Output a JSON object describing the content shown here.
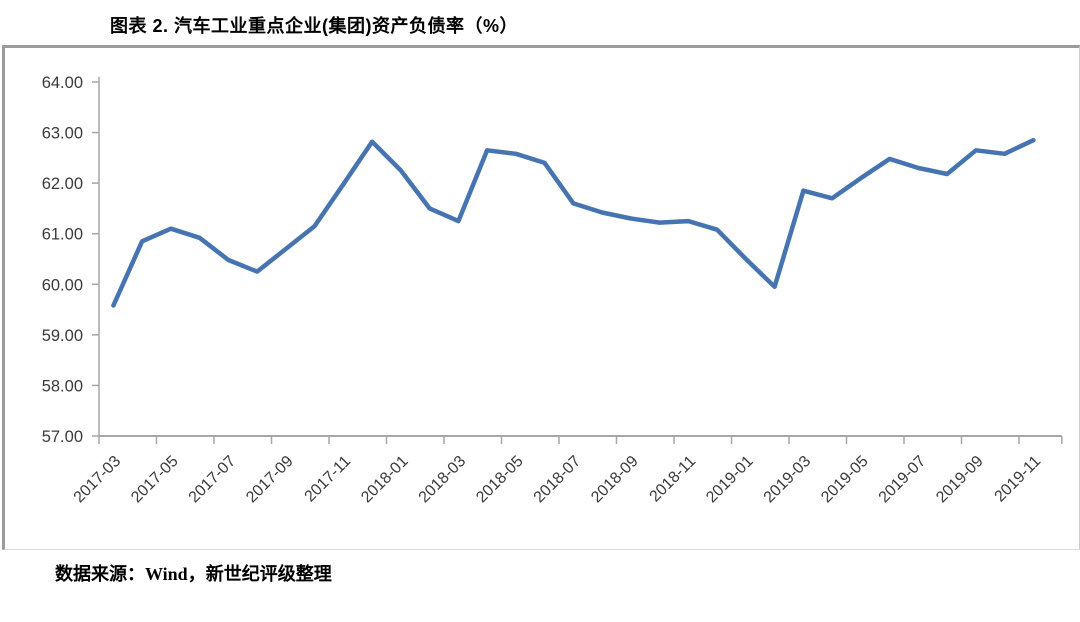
{
  "header": {
    "title": "图表 2.  汽车工业重点企业(集团)资产负债率（%）"
  },
  "footer": {
    "source_text": "数据来源：Wind，新世纪评级整理"
  },
  "chart_data": {
    "type": "line",
    "title": "汽车工业重点企业(集团)资产负债率（%）",
    "x": [
      "2017-03",
      "2017-04",
      "2017-05",
      "2017-06",
      "2017-07",
      "2017-08",
      "2017-09",
      "2017-10",
      "2017-11",
      "2017-12",
      "2018-01",
      "2018-02",
      "2018-03",
      "2018-04",
      "2018-05",
      "2018-06",
      "2018-07",
      "2018-08",
      "2018-09",
      "2018-10",
      "2018-11",
      "2018-12",
      "2019-01",
      "2019-02",
      "2019-03",
      "2019-04",
      "2019-05",
      "2019-06",
      "2019-07",
      "2019-08",
      "2019-09",
      "2019-10",
      "2019-11"
    ],
    "series": [
      {
        "name": "资产负债率",
        "color": "#4674b0",
        "values": [
          59.58,
          60.85,
          61.1,
          60.92,
          60.48,
          60.25,
          60.7,
          61.15,
          61.98,
          62.82,
          62.25,
          61.5,
          61.25,
          62.65,
          62.58,
          62.4,
          61.6,
          61.42,
          61.3,
          61.22,
          61.25,
          61.08,
          60.5,
          59.95,
          61.85,
          61.7,
          62.1,
          62.48,
          62.3,
          62.18,
          62.65,
          62.58,
          62.85
        ]
      }
    ],
    "xtick_labels": [
      "2017-03",
      "2017-05",
      "2017-07",
      "2017-09",
      "2017-11",
      "2018-01",
      "2018-03",
      "2018-05",
      "2018-07",
      "2018-09",
      "2018-11",
      "2019-01",
      "2019-03",
      "2019-05",
      "2019-07",
      "2019-09",
      "2019-11"
    ],
    "xtick_every": 2,
    "ytick_labels": [
      "64.00",
      "63.00",
      "62.00",
      "61.00",
      "60.00",
      "59.00",
      "58.00",
      "57.00"
    ],
    "ylim": [
      57,
      64
    ],
    "ytick_step": 1,
    "grid": false,
    "legend": "none",
    "xlabel": "",
    "ylabel": "",
    "axis_color": "#a6a6a6",
    "label_color": "#3a3a3a",
    "line_width": 4.5
  }
}
